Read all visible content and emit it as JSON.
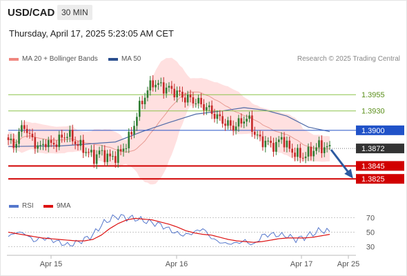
{
  "header": {
    "symbol": "USD/CAD",
    "timeframe": "30 MIN"
  },
  "timestamp": "Thursday, April 17, 2025 5:23:05 AM CET",
  "legend": {
    "items": [
      {
        "label": "MA 20 + Bollinger Bands",
        "color": "#f0877f"
      },
      {
        "label": "MA 50",
        "color": "#2c4f8f"
      }
    ]
  },
  "credit": "Research © 2025 Trading Central",
  "rsi_legend": {
    "items": [
      {
        "label": "RSI",
        "color": "#5577cc"
      },
      {
        "label": "9MA",
        "color": "#dd1111"
      }
    ]
  },
  "colors": {
    "up": "#2e7d32",
    "down": "#c62828",
    "band": "#ffd5d5",
    "ma20": "#e89a92",
    "ma50": "#4f6ba8",
    "target": "#8bc34a",
    "pivot": "#2052c8",
    "support": "#d10000",
    "arrow": "#2c5aa0"
  },
  "chart_data": [
    {
      "type": "candlestick",
      "title": "USD/CAD",
      "timeframe": "30 MIN",
      "x_ticks": [
        "Apr 15",
        "Apr 16",
        "Apr 17",
        "Apr 25"
      ],
      "ylim": [
        1.3805,
        1.4
      ],
      "grid": false,
      "price_levels": [
        {
          "value": 1.3955,
          "label": "1.3955",
          "kind": "target"
        },
        {
          "value": 1.393,
          "label": "1.3930",
          "kind": "target"
        },
        {
          "value": 1.39,
          "label": "1.3900",
          "kind": "pivot"
        },
        {
          "value": 1.3872,
          "label": "1.3872",
          "kind": "last"
        },
        {
          "value": 1.3845,
          "label": "1.3845",
          "kind": "support"
        },
        {
          "value": 1.3825,
          "label": "1.3825",
          "kind": "support"
        }
      ],
      "close_path": [
        [
          0,
          1.3885
        ],
        [
          2,
          1.3875
        ],
        [
          4,
          1.3895
        ],
        [
          6,
          1.3908
        ],
        [
          8,
          1.389
        ],
        [
          10,
          1.388
        ],
        [
          12,
          1.3872
        ],
        [
          14,
          1.3883
        ],
        [
          16,
          1.3877
        ],
        [
          18,
          1.3882
        ],
        [
          20,
          1.3888
        ],
        [
          22,
          1.3895
        ],
        [
          24,
          1.3886
        ],
        [
          26,
          1.3878
        ],
        [
          28,
          1.3872
        ],
        [
          30,
          1.3865
        ],
        [
          32,
          1.3858
        ],
        [
          34,
          1.3866
        ],
        [
          36,
          1.3862
        ],
        [
          38,
          1.3857
        ],
        [
          40,
          1.386
        ],
        [
          42,
          1.3866
        ],
        [
          44,
          1.388
        ],
        [
          46,
          1.3895
        ],
        [
          48,
          1.3925
        ],
        [
          50,
          1.3945
        ],
        [
          52,
          1.3962
        ],
        [
          54,
          1.3974
        ],
        [
          56,
          1.397
        ],
        [
          58,
          1.3966
        ],
        [
          60,
          1.3964
        ],
        [
          62,
          1.396
        ],
        [
          64,
          1.3955
        ],
        [
          66,
          1.395
        ],
        [
          68,
          1.3948
        ],
        [
          70,
          1.3945
        ],
        [
          72,
          1.394
        ],
        [
          74,
          1.3935
        ],
        [
          76,
          1.3928
        ],
        [
          78,
          1.392
        ],
        [
          80,
          1.3915
        ],
        [
          82,
          1.3908
        ],
        [
          84,
          1.3905
        ],
        [
          86,
          1.391
        ],
        [
          88,
          1.3918
        ],
        [
          90,
          1.3915
        ],
        [
          92,
          1.3895
        ],
        [
          94,
          1.3885
        ],
        [
          96,
          1.3882
        ],
        [
          98,
          1.3878
        ],
        [
          100,
          1.3876
        ],
        [
          102,
          1.389
        ],
        [
          104,
          1.3875
        ],
        [
          106,
          1.3868
        ],
        [
          108,
          1.3862
        ],
        [
          110,
          1.386
        ],
        [
          112,
          1.3864
        ],
        [
          114,
          1.387
        ],
        [
          116,
          1.3876
        ],
        [
          118,
          1.3873
        ],
        [
          120,
          1.3872
        ]
      ],
      "ma50_path": [
        [
          0,
          1.3875
        ],
        [
          20,
          1.3876
        ],
        [
          40,
          1.3882
        ],
        [
          50,
          1.3898
        ],
        [
          60,
          1.3912
        ],
        [
          70,
          1.3925
        ],
        [
          80,
          1.393
        ],
        [
          88,
          1.3935
        ],
        [
          96,
          1.3931
        ],
        [
          104,
          1.3922
        ],
        [
          112,
          1.3905
        ],
        [
          120,
          1.3898
        ]
      ],
      "forecast_arrow": {
        "from": 1.387,
        "to": 1.3825
      }
    },
    {
      "type": "line",
      "title": "RSI",
      "ylim": [
        20,
        80
      ],
      "y_ticks": [
        70,
        50,
        30
      ],
      "series": [
        {
          "name": "RSI",
          "values": [
            44,
            50,
            48,
            38,
            42,
            40,
            36,
            32,
            35,
            40,
            46,
            60,
            68,
            72,
            70,
            69,
            66,
            63,
            60,
            54,
            48,
            46,
            50,
            55,
            42,
            36,
            34,
            35,
            38,
            32,
            45,
            47,
            46,
            45,
            40,
            43,
            48,
            53,
            50
          ]
        },
        {
          "name": "9MA",
          "values": [
            50,
            48,
            46,
            44,
            42,
            41,
            40,
            39,
            38,
            38,
            40,
            46,
            55,
            62,
            67,
            69,
            68,
            67,
            64,
            61,
            57,
            52,
            49,
            47,
            46,
            43,
            40,
            38,
            37,
            36,
            37,
            39,
            41,
            42,
            42,
            42,
            43,
            45,
            47
          ]
        }
      ]
    }
  ]
}
